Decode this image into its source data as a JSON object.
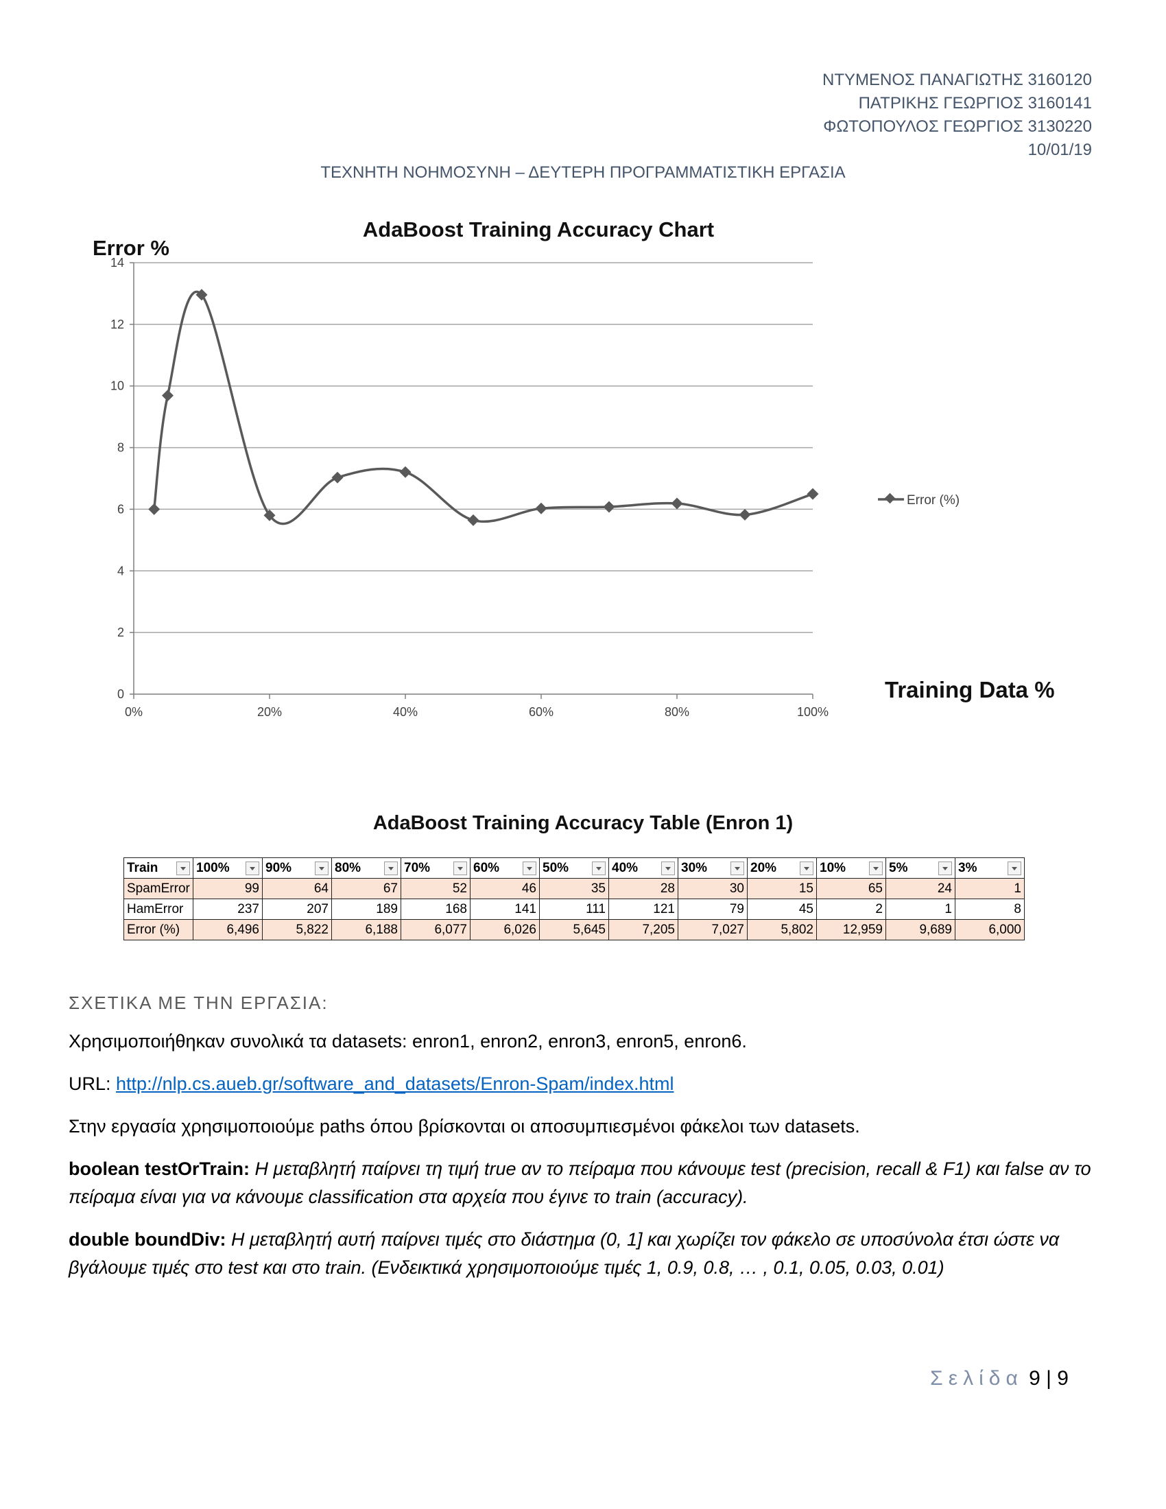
{
  "header": {
    "authors": [
      "ΝΤΥΜΕΝΟΣ ΠΑΝΑΓΙΩΤΗΣ 3160120",
      "ΠΑΤΡΙΚΗΣ ΓΕΩΡΓΙΟΣ 3160141",
      "ΦΩΤΟΠΟΥΛΟΣ ΓΕΩΡΓΙΟΣ 3130220"
    ],
    "date": "10/01/19",
    "title": "ΤΕΧΝΗΤΗ ΝΟΗΜΟΣΥΝΗ – ΔΕΥΤΕΡΗ ΠΡΟΓΡΑΜΜΑΤΙΣΤΙΚΗ ΕΡΓΑΣΙΑ"
  },
  "chart_data": {
    "type": "line",
    "title": "AdaBoost Training Accuracy Chart",
    "ylabel": "Error %",
    "xlabel": "Training Data %",
    "ylim": [
      0,
      14
    ],
    "xlim": [
      0,
      100
    ],
    "yticks": [
      "0",
      "2",
      "4",
      "6",
      "8",
      "10",
      "12",
      "14"
    ],
    "xticks": [
      "0%",
      "20%",
      "40%",
      "60%",
      "80%",
      "100%"
    ],
    "grid": true,
    "legend_position": "right",
    "series": [
      {
        "name": "Error (%)",
        "color": "#595959",
        "x": [
          3,
          5,
          10,
          20,
          30,
          40,
          50,
          60,
          70,
          80,
          90,
          100
        ],
        "y": [
          6.0,
          9.689,
          12.959,
          5.802,
          7.027,
          7.205,
          5.645,
          6.026,
          6.077,
          6.188,
          5.822,
          6.496
        ]
      }
    ]
  },
  "table": {
    "title": "AdaBoost Training Accuracy Table (Enron 1)",
    "headers": [
      "Train",
      "100%",
      "90%",
      "80%",
      "70%",
      "60%",
      "50%",
      "40%",
      "30%",
      "20%",
      "10%",
      "5%",
      "3%"
    ],
    "rows": [
      [
        "SpamError",
        "99",
        "64",
        "67",
        "52",
        "46",
        "35",
        "28",
        "30",
        "15",
        "65",
        "24",
        "1"
      ],
      [
        "HamError",
        "237",
        "207",
        "189",
        "168",
        "141",
        "111",
        "121",
        "79",
        "45",
        "2",
        "1",
        "8"
      ],
      [
        "Error (%)",
        "6,496",
        "5,822",
        "6,188",
        "6,077",
        "6,026",
        "5,645",
        "7,205",
        "7,027",
        "5,802",
        "12,959",
        "9,689",
        "6,000"
      ]
    ]
  },
  "section": {
    "heading": "ΣΧΕΤΙΚΑ ΜΕ ΤΗΝ ΕΡΓΑΣΙΑ:",
    "p1": "Χρησιμοποιήθηκαν συνολικά τα datasets: enron1, enron2, enron3, enron5, enron6.",
    "url_label": "URL: ",
    "url": "http://nlp.cs.aueb.gr/software_and_datasets/Enron-Spam/index.html",
    "p3": "Στην εργασία χρησιμοποιούμε paths όπου βρίσκονται οι αποσυμπιεσμένοι φάκελοι των datasets.",
    "p4_bold": "boolean testOrTrain:",
    "p4_italic": " Η μεταβλητή παίρνει τη τιμή true αν το πείραμα που κάνουμε test (precision, recall & F1) και false αν το πείραμα είναι για να κάνουμε classification στα αρχεία που έγινε το train (accuracy).",
    "p5_bold": "double boundDiv:",
    "p5_italic": " Η μεταβλητή αυτή παίρνει τιμές στο διάστημα (0, 1] και χωρίζει τον φάκελο σε υποσύνολα έτσι ώστε να βγάλουμε τιμές στο test και στο train. (Ενδεικτικά χρησιμοποιούμε τιμές 1, 0.9, 0.8, … , 0.1, 0.05, 0.03, 0.01)"
  },
  "footer": {
    "word": "Σελίδα",
    "page": "9 | 9"
  }
}
